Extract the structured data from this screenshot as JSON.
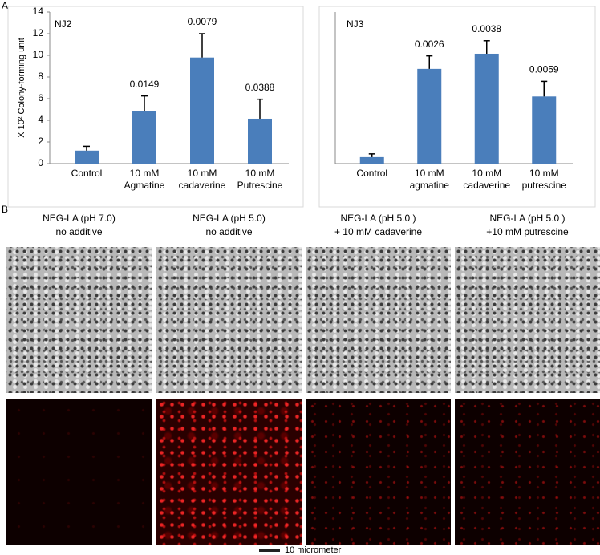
{
  "panel_labels": [
    "A",
    "B"
  ],
  "chart_data": [
    {
      "type": "bar",
      "label": "NJ2",
      "y_label": "X 10² Colony-forming unit",
      "categories": [
        "Control",
        "10 mM Agmatine",
        "10 mM cadaverine",
        "10 mM Putrescine"
      ],
      "values": [
        1.2,
        4.85,
        9.8,
        4.15
      ],
      "errors": [
        0.4,
        1.4,
        2.2,
        1.8
      ],
      "annotations": [
        null,
        "0.0149",
        "0.0079",
        "0.0388"
      ],
      "color": "#4a7ebb",
      "ylim": [
        0,
        14
      ],
      "yticks": [
        0,
        2,
        4,
        6,
        8,
        10,
        12,
        14
      ]
    },
    {
      "type": "bar",
      "label": "NJ3",
      "categories": [
        "Control",
        "10 mM agmatine",
        "10 mM cadaverine",
        "10 mM putrescine"
      ],
      "values": [
        0.6,
        8.75,
        10.15,
        6.2
      ],
      "errors": [
        0.3,
        1.2,
        1.2,
        1.4
      ],
      "annotations": [
        null,
        "0.0026",
        "0.0038",
        "0.0059"
      ],
      "color": "#4a7ebb",
      "ylim": [
        0,
        14
      ]
    }
  ],
  "images": [
    {
      "title": "NEG-LA (pH 7.0)",
      "subtitle": "no additive"
    },
    {
      "title": "NEG-LA (pH 5.0)",
      "subtitle": "no additive"
    },
    {
      "title": "NEG-LA (pH 5.0 )",
      "subtitle": "+ 10 mM cadaverine"
    },
    {
      "title": "NEG-LA (pH 5.0 )",
      "subtitle": "+10 mM putrescine"
    }
  ],
  "scale_bar": "10 micrometer"
}
